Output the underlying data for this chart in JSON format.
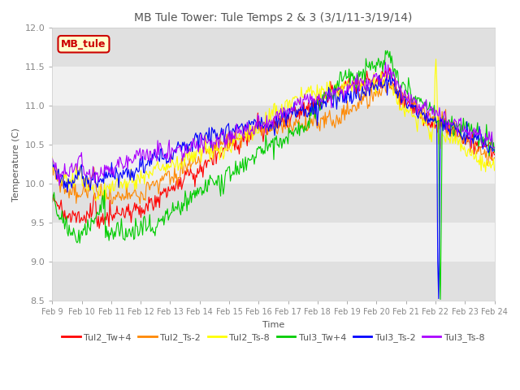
{
  "title": "MB Tule Tower: Tule Temps 2 & 3 (3/1/11-3/19/14)",
  "xlabel": "Time",
  "ylabel": "Temperature (C)",
  "ylim": [
    8.5,
    12.0
  ],
  "yticks": [
    8.5,
    9.0,
    9.5,
    10.0,
    10.5,
    11.0,
    11.5,
    12.0
  ],
  "xtick_labels": [
    "Feb 9",
    "Feb 10",
    "Feb 11",
    "Feb 12",
    "Feb 13",
    "Feb 14",
    "Feb 15",
    "Feb 16",
    "Feb 17",
    "Feb 18",
    "Feb 19",
    "Feb 20",
    "Feb 21",
    "Feb 22",
    "Feb 23",
    "Feb 24"
  ],
  "legend_title": "MB_tule",
  "series_names": [
    "Tul2_Tw+4",
    "Tul2_Ts-2",
    "Tul2_Ts-8",
    "Tul3_Tw+4",
    "Tul3_Ts-2",
    "Tul3_Ts-8"
  ],
  "series_colors": [
    "#ff0000",
    "#ff8800",
    "#ffff00",
    "#00cc00",
    "#0000ff",
    "#aa00ff"
  ],
  "background_color": "#ffffff",
  "plot_bg_color": "#f0f0f0",
  "band_light": "#f0f0f0",
  "band_dark": "#e0e0e0",
  "title_fontsize": 10,
  "axis_fontsize": 8,
  "tick_fontsize": 8,
  "legend_fontsize": 8
}
